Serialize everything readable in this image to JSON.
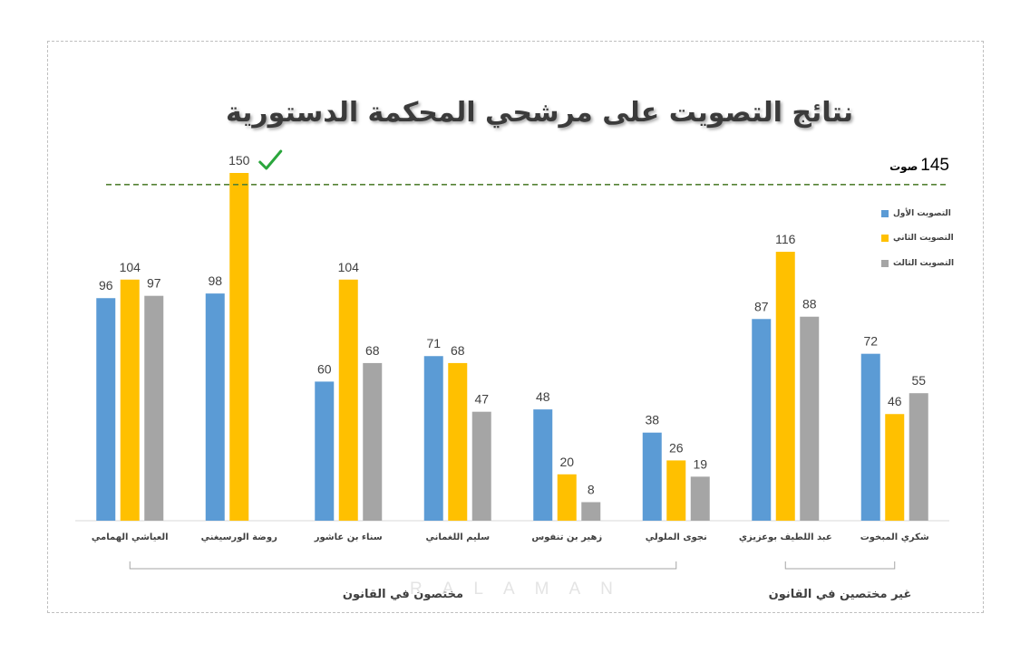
{
  "chart_data": {
    "type": "bar",
    "title": "نتائج التصويت على مرشحي المحكمة الدستورية",
    "xlabel": "",
    "ylabel": "",
    "categories": [
      "العياشي الهمامي",
      "روضة الورسيغني",
      "سناء بن عاشور",
      "سليم اللغماني",
      "زهير بن تنفوس",
      "نجوى الملولي",
      "عبد اللطيف بوعزيزي",
      "شكري المبخوت"
    ],
    "series": [
      {
        "name": "التصويت الأول",
        "color": "#5B9BD5",
        "values": [
          96,
          98,
          60,
          71,
          48,
          38,
          87,
          72
        ]
      },
      {
        "name": "التصويت الثاني",
        "color": "#FFC000",
        "values": [
          104,
          150,
          104,
          68,
          20,
          26,
          116,
          46
        ]
      },
      {
        "name": "التصويت الثالث",
        "color": "#A5A5A5",
        "values": [
          97,
          null,
          68,
          47,
          8,
          19,
          88,
          55
        ]
      }
    ],
    "ylim": [
      0,
      150
    ],
    "grid": false,
    "legend": "top-right",
    "threshold": {
      "value": 145,
      "unit": "صوت",
      "color": "#548235"
    },
    "groups": [
      {
        "label": "مختصون في القانون",
        "first_category": 0,
        "last_category": 5
      },
      {
        "label": "غير مختصين في القانون",
        "first_category": 6,
        "last_category": 7
      }
    ],
    "annotations": [
      {
        "category_index": 1,
        "series_index": 1,
        "icon": "check-icon",
        "color": "#2AA63C"
      }
    ]
  },
  "watermark": {
    "text": "RALAMAN"
  },
  "colors": {
    "axis": "#D9D9D9",
    "frame": "#BFBFBF",
    "bracket": "#A6A6A6",
    "text": "#404040"
  }
}
